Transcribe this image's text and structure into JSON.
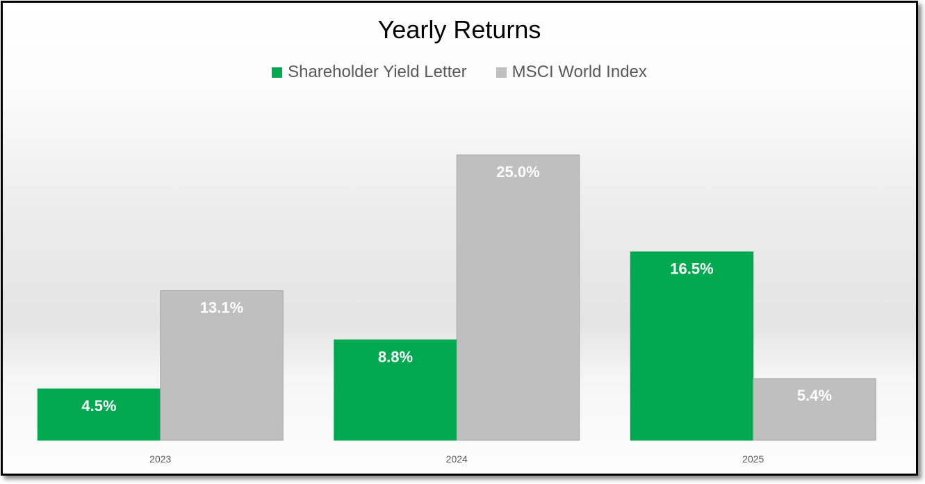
{
  "chart_data": {
    "type": "bar",
    "title": "Yearly Returns",
    "categories": [
      "2023",
      "2024",
      "2025"
    ],
    "series": [
      {
        "name": "Shareholder Yield Letter",
        "color": "#00a94f",
        "values": [
          4.5,
          8.8,
          16.5
        ],
        "labels": [
          "4.5%",
          "8.8%",
          "16.5%"
        ]
      },
      {
        "name": "MSCI World Index",
        "color": "#bfbfbf",
        "values": [
          13.1,
          25.0,
          5.4
        ],
        "labels": [
          "13.1%",
          "25.0%",
          "5.4%"
        ]
      }
    ],
    "xlabel": "",
    "ylabel": "",
    "ylim": [
      0,
      25
    ],
    "grid": false,
    "legend": "top-center"
  }
}
